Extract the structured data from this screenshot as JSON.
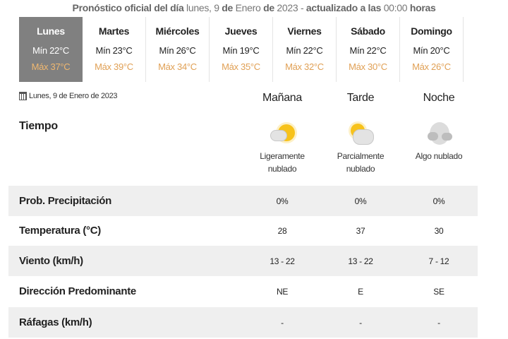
{
  "header": {
    "prefix": "Pronóstico oficial del día",
    "date_text": "lunes, 9",
    "de1": "de",
    "month": "Enero",
    "de2": "de",
    "year": "2023 -",
    "updated": "actualizado a las",
    "time": "00:00",
    "hours": "horas"
  },
  "days": [
    {
      "day": "Lunes",
      "min": "Mín 22°C",
      "max": "Máx 37°C",
      "active": true
    },
    {
      "day": "Martes",
      "min": "Mín 23°C",
      "max": "Máx 39°C"
    },
    {
      "day": "Miércoles",
      "min": "Mín 26°C",
      "max": "Máx 34°C"
    },
    {
      "day": "Jueves",
      "min": "Mín 19°C",
      "max": "Máx 35°C"
    },
    {
      "day": "Viernes",
      "min": "Mín 22°C",
      "max": "Máx 32°C"
    },
    {
      "day": "Sábado",
      "min": "Mín 22°C",
      "max": "Máx 30°C"
    },
    {
      "day": "Domingo",
      "min": "Mín 20°C",
      "max": "Máx 26°C"
    }
  ],
  "selected_date": "Lunes, 9 de Enero de 2023",
  "periods": [
    "Mañana",
    "Tarde",
    "Noche"
  ],
  "weather": {
    "label": "Tiempo",
    "items": [
      {
        "icon": "sun-behind-small-cloud-icon",
        "desc1": "Ligeramente",
        "desc2": "nublado"
      },
      {
        "icon": "sun-behind-cloud-icon",
        "desc1": "Parcialmente",
        "desc2": "nublado"
      },
      {
        "icon": "cloudy-night-icon",
        "desc1": "Algo nublado",
        "desc2": ""
      }
    ]
  },
  "rows": [
    {
      "label": "Prob. Precipitación",
      "values": [
        "0%",
        "0%",
        "0%"
      ]
    },
    {
      "label": "Temperatura (°C)",
      "values": [
        "28",
        "37",
        "30"
      ]
    },
    {
      "label": "Viento (km/h)",
      "values": [
        "13 - 22",
        "13 - 22",
        "7 - 12"
      ]
    },
    {
      "label": "Dirección Predominante",
      "values": [
        "NE",
        "E",
        "SE"
      ]
    },
    {
      "label": "Ráfagas (km/h)",
      "values": [
        "-",
        "-",
        "-"
      ]
    }
  ],
  "colors": {
    "active_tab": "#808080",
    "max_temp": "#e0a055",
    "row_alt": "#efefef"
  }
}
